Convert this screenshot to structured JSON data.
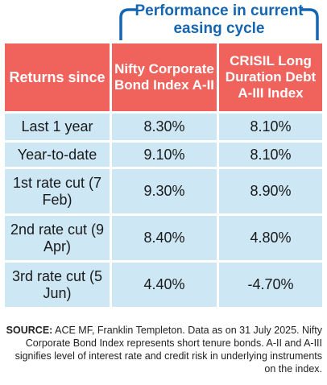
{
  "title": "Performance in current easing cycle",
  "colors": {
    "accent_blue": "#1565b0",
    "header_red": "#f0625c",
    "row_blue": "#cde7f5"
  },
  "table": {
    "headers": [
      "Returns since",
      "Nifty Corporate Bond Index A-II",
      "CRISIL Long Duration Debt A-III Index"
    ],
    "rows": [
      {
        "label": "Last 1 year",
        "nifty": "8.30%",
        "crisil": "8.10%"
      },
      {
        "label": "Year-to-date",
        "nifty": "9.10%",
        "crisil": "8.10%"
      },
      {
        "label": "1st rate cut (7 Feb)",
        "nifty": "9.30%",
        "crisil": "8.90%"
      },
      {
        "label": "2nd rate cut (9 Apr)",
        "nifty": "8.40%",
        "crisil": "4.80%"
      },
      {
        "label": "3rd rate cut (5 Jun)",
        "nifty": "4.40%",
        "crisil": "-4.70%"
      }
    ]
  },
  "source": {
    "label": "SOURCE:",
    "text": "ACE MF, Franklin Templeton. Data as on 31 July 2025. Nifty Corporate Bond Index represents short tenure bonds. A-II and A-III signifies level of interest rate and credit risk in underlying instruments on the index."
  }
}
